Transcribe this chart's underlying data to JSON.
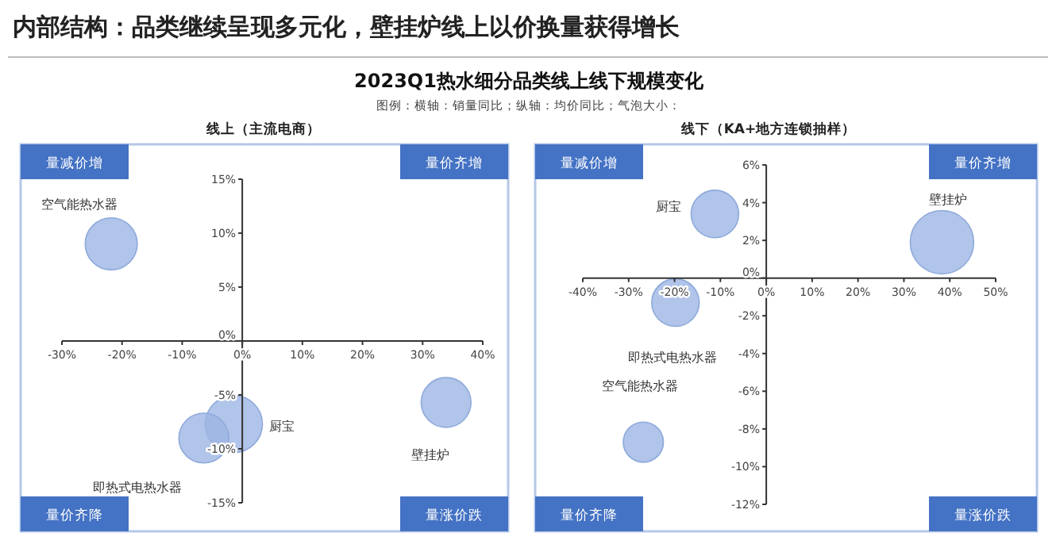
{
  "chart_data": [
    {
      "type": "other",
      "title": "内部结构：品类继续呈现多元化，壁挂炉线上以价换量获得增长",
      "subtitle": "2023Q1热水细分品类线上线下规模变化",
      "annotations": [
        "图例：横轴：销量同比；纵轴：均价同比；气泡大小："
      ]
    },
    {
      "type": "bubble",
      "title": "线上（主流电商）",
      "xlim": [
        -30,
        40
      ],
      "ylim": [
        -15,
        15
      ],
      "xticks": [
        {
          "value": -30,
          "label": "-30%"
        },
        {
          "value": -20,
          "label": "-20%"
        },
        {
          "value": -10,
          "label": "-10%"
        },
        {
          "value": 0,
          "label": "0%"
        },
        {
          "value": 10,
          "label": "10%"
        },
        {
          "value": 20,
          "label": "20%"
        },
        {
          "value": 30,
          "label": "30%"
        },
        {
          "value": 40,
          "label": "40%"
        }
      ],
      "yticks": [
        {
          "value": -15,
          "label": "-15%"
        },
        {
          "value": -10,
          "label": "-10%"
        },
        {
          "value": -5,
          "label": "-5%"
        },
        {
          "value": 0,
          "label": "0%"
        },
        {
          "value": 5,
          "label": "5%"
        },
        {
          "value": 10,
          "label": "10%"
        },
        {
          "value": 15,
          "label": "15%"
        }
      ],
      "series": [
        {
          "name": "空气能热水器",
          "color": "#9db5e3",
          "x": [
            -21.8
          ],
          "values": [
            9.0
          ],
          "sizes": [
            0.83
          ]
        },
        {
          "name": "厨宝",
          "color": "#9db5e3",
          "x": [
            -1.4
          ],
          "values": [
            -7.7
          ],
          "sizes": [
            1
          ]
        },
        {
          "name": "即热式电热水器",
          "color": "#9db5e3",
          "x": [
            -6.4
          ],
          "values": [
            -9.0
          ],
          "sizes": [
            0.76
          ]
        },
        {
          "name": "壁挂炉",
          "color": "#9db5e3",
          "x": [
            33.9
          ],
          "values": [
            -5.7
          ],
          "sizes": [
            0.76
          ]
        }
      ],
      "annotations": [
        "量减价增",
        "量价齐增",
        "量价齐降",
        "量涨价跌"
      ]
    },
    {
      "type": "bubble",
      "title": "线下（KA+地方连锁抽样）",
      "xlim": [
        -40,
        50
      ],
      "ylim": [
        -12,
        6
      ],
      "xticks": [
        {
          "value": -40,
          "label": "-40%"
        },
        {
          "value": -30,
          "label": "-30%"
        },
        {
          "value": -20,
          "label": "-20%"
        },
        {
          "value": -10,
          "label": "-10%"
        },
        {
          "value": 0,
          "label": "0%"
        },
        {
          "value": 10,
          "label": "10%"
        },
        {
          "value": 20,
          "label": "20%"
        },
        {
          "value": 30,
          "label": "30%"
        },
        {
          "value": 40,
          "label": "40%"
        },
        {
          "value": 50,
          "label": "50%"
        }
      ],
      "yticks": [
        {
          "value": -12,
          "label": "-12%"
        },
        {
          "value": -10,
          "label": "-10%"
        },
        {
          "value": -8,
          "label": "-8%"
        },
        {
          "value": -6,
          "label": "-6%"
        },
        {
          "value": -4,
          "label": "-4%"
        },
        {
          "value": -2,
          "label": "-2%"
        },
        {
          "value": 0,
          "label": "0%"
        },
        {
          "value": 2,
          "label": "2%"
        },
        {
          "value": 4,
          "label": "4%"
        },
        {
          "value": 6,
          "label": "6%"
        }
      ],
      "series": [
        {
          "name": "厨宝",
          "color": "#9db5e3",
          "x": [
            -11.2
          ],
          "values": [
            3.4
          ],
          "sizes": [
            0.56
          ]
        },
        {
          "name": "壁挂炉",
          "color": "#9db5e3",
          "x": [
            38.3
          ],
          "values": [
            1.9
          ],
          "sizes": [
            1
          ]
        },
        {
          "name": "即热式电热水器",
          "color": "#9db5e3",
          "x": [
            -19.8
          ],
          "values": [
            -1.3
          ],
          "sizes": [
            0.56
          ]
        },
        {
          "name": "空气能热水器",
          "color": "#9db5e3",
          "x": [
            -26.8
          ],
          "values": [
            -8.7
          ],
          "sizes": [
            0.4
          ]
        }
      ],
      "annotations": [
        "量减价增",
        "量价齐增",
        "量价齐降",
        "量涨价跌"
      ]
    }
  ]
}
